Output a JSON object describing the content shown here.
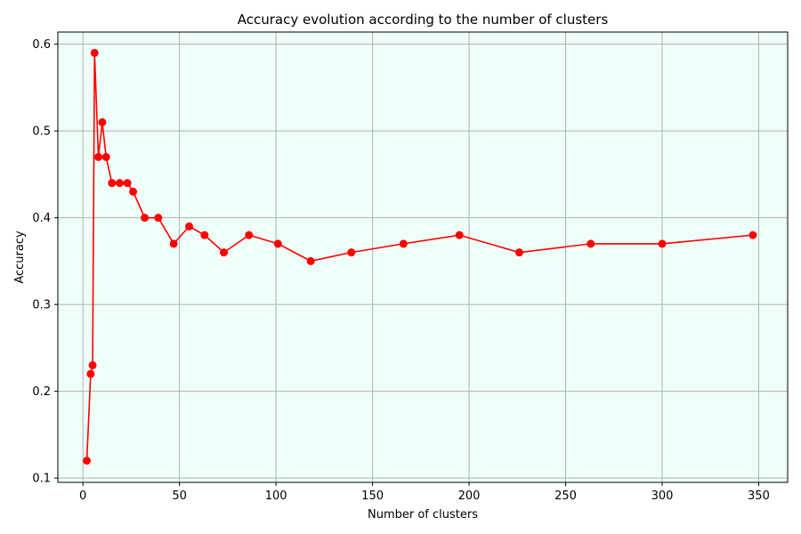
{
  "chart_data": {
    "type": "line",
    "title": "Accuracy evolution according to the number of clusters",
    "xlabel": "Number of clusters",
    "ylabel": "Accuracy",
    "xlim": [
      -13,
      365
    ],
    "ylim": [
      0.095,
      0.614
    ],
    "x_ticks": [
      0,
      50,
      100,
      150,
      200,
      250,
      300,
      350
    ],
    "y_ticks": [
      0.1,
      0.2,
      0.3,
      0.4,
      0.5,
      0.6
    ],
    "grid": true,
    "background_color": "#eefff9",
    "series": [
      {
        "color": "#ff0000",
        "marker": "circle",
        "x": [
          2,
          4,
          5,
          6,
          8,
          10,
          12,
          15,
          19,
          23,
          26,
          32,
          39,
          47,
          55,
          63,
          73,
          86,
          101,
          118,
          139,
          166,
          195,
          226,
          263,
          300,
          347
        ],
        "y": [
          0.12,
          0.22,
          0.23,
          0.59,
          0.47,
          0.51,
          0.47,
          0.44,
          0.44,
          0.44,
          0.43,
          0.4,
          0.4,
          0.37,
          0.39,
          0.38,
          0.36,
          0.38,
          0.37,
          0.35,
          0.36,
          0.37,
          0.38,
          0.36,
          0.37,
          0.37,
          0.38
        ]
      }
    ]
  }
}
